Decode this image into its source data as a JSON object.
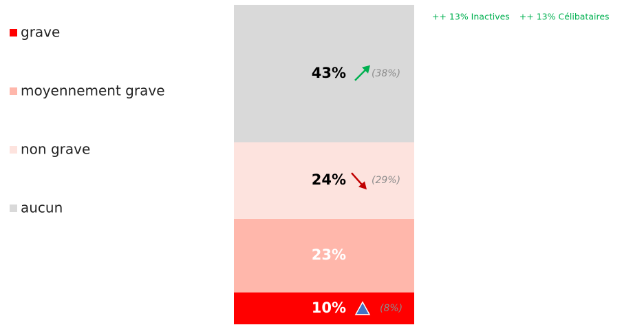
{
  "chart_data": {
    "type": "stacked_bar",
    "ylim": [
      0,
      100
    ],
    "series": [
      {
        "name": "grave",
        "color": "#ff0000",
        "text_color": "#ffffff",
        "values": [
          10
        ],
        "value_labels": [
          "10%"
        ],
        "annotation": "(8%)",
        "trend": "triangle"
      },
      {
        "name": "moyennement grave",
        "color": "#ffb7ab",
        "text_color": "#ffffff",
        "values": [
          23
        ],
        "value_labels": [
          "23%"
        ],
        "annotation": null,
        "trend": null
      },
      {
        "name": "non grave",
        "color": "#fde3de",
        "text_color": "#000000",
        "values": [
          24
        ],
        "value_labels": [
          "24%"
        ],
        "annotation": "(29%)",
        "trend": "down"
      },
      {
        "name": "aucun",
        "color": "#d9d9d9",
        "text_color": "#000000",
        "values": [
          43
        ],
        "value_labels": [
          "43%"
        ],
        "annotation": "(38%)",
        "trend": "up"
      }
    ],
    "notes": [
      "++ 13% Inactives",
      "++ 13% Célibataires"
    ]
  }
}
